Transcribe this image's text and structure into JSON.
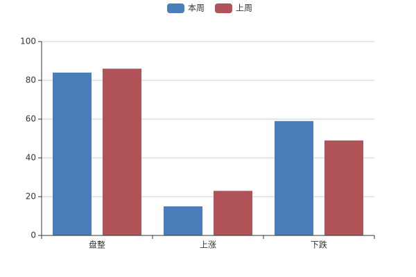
{
  "chart_data": {
    "type": "bar",
    "categories": [
      "盘整",
      "上涨",
      "下跌"
    ],
    "series": [
      {
        "name": "本周",
        "color": "#4a7ebb",
        "values": [
          84,
          15,
          59
        ]
      },
      {
        "name": "上周",
        "color": "#b0545a",
        "values": [
          86,
          23,
          49
        ]
      }
    ],
    "ylim": [
      0,
      100
    ],
    "yticks": [
      0,
      20,
      40,
      60,
      80,
      100
    ],
    "grid": true,
    "legend": "top"
  }
}
